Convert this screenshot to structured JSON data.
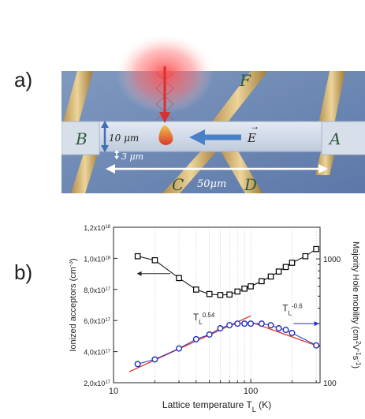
{
  "panel_a": {
    "label": "a)",
    "contacts": [
      "A",
      "B",
      "C",
      "D",
      "F"
    ],
    "dim_width": "10 μm",
    "dim_gap": "3 μm",
    "dim_length": "50μm",
    "field_label": "E"
  },
  "panel_b": {
    "label": "b)"
  },
  "chart_data": {
    "type": "scatter",
    "xlabel": "Lattice temperature T",
    "xlabel_sub": "L",
    "xlabel_unit": " (K)",
    "xscale": "log",
    "xlim": [
      10,
      320
    ],
    "x_ticks": [
      "10",
      "100"
    ],
    "left_axis": {
      "label": "Ionized acceptors (cm",
      "label_sup": "-3",
      "label_end": ")",
      "ylim": [
        2e+17,
        1.2e+18
      ],
      "ticks": [
        {
          "value": 2e+17,
          "mant": "2,0x10",
          "exp": "17"
        },
        {
          "value": 4e+17,
          "mant": "4,0x10",
          "exp": "17"
        },
        {
          "value": 6e+17,
          "mant": "6,0x10",
          "exp": "17"
        },
        {
          "value": 8e+17,
          "mant": "8,0x10",
          "exp": "17"
        },
        {
          "value": 1e+18,
          "mant": "1,0x10",
          "exp": "18"
        },
        {
          "value": 1.2e+18,
          "mant": "1,2x10",
          "exp": "18"
        }
      ]
    },
    "right_axis": {
      "label": "Majority Hole mobility (cm",
      "label_sup1": "2",
      "label_mid": "V",
      "label_sup2": "-1",
      "label_mid2": "s",
      "label_sup3": "-1",
      "label_end": ")",
      "scale": "log",
      "ylim": [
        100,
        1800
      ],
      "ticks": [
        {
          "value": 100,
          "label": "100"
        },
        {
          "value": 1000,
          "label": "1000"
        }
      ]
    },
    "series": [
      {
        "axis": "right",
        "marker": "square",
        "color": "#000000",
        "x": [
          15,
          20,
          30,
          40,
          50,
          60,
          70,
          80,
          90,
          100,
          120,
          140,
          160,
          180,
          200,
          250,
          300
        ],
        "y": [
          1050,
          975,
          700,
          565,
          520,
          510,
          515,
          545,
          575,
          600,
          660,
          720,
          790,
          860,
          930,
          1050,
          1200
        ]
      },
      {
        "axis": "left",
        "marker": "circle",
        "color": "#1f2fbf",
        "x": [
          15,
          20,
          30,
          40,
          50,
          60,
          70,
          80,
          90,
          100,
          120,
          140,
          160,
          180,
          200,
          300
        ],
        "y": [
          3.2e+17,
          3.5e+17,
          4.2e+17,
          4.8e+17,
          5.1e+17,
          5.5e+17,
          5.7e+17,
          5.8e+17,
          5.8e+17,
          5.8e+17,
          5.8e+17,
          5.7e+17,
          5.5e+17,
          5.4e+17,
          5.2e+17,
          4.4e+17
        ]
      }
    ],
    "fits": [
      {
        "label": "T",
        "sub": "L",
        "sup": "0.54",
        "color": "#e0312a",
        "x": [
          13,
          100
        ],
        "y": [
          2.7e+17,
          6.3e+17
        ]
      },
      {
        "label": "T",
        "sub": "L",
        "sup": "-0.6",
        "color": "#e0312a",
        "x": [
          100,
          320
        ],
        "y": [
          5.9e+17,
          4.3e+17
        ]
      }
    ],
    "vertical_grid_x": [
      20,
      30,
      40,
      50,
      60,
      70,
      80,
      90,
      100,
      200,
      300
    ]
  }
}
